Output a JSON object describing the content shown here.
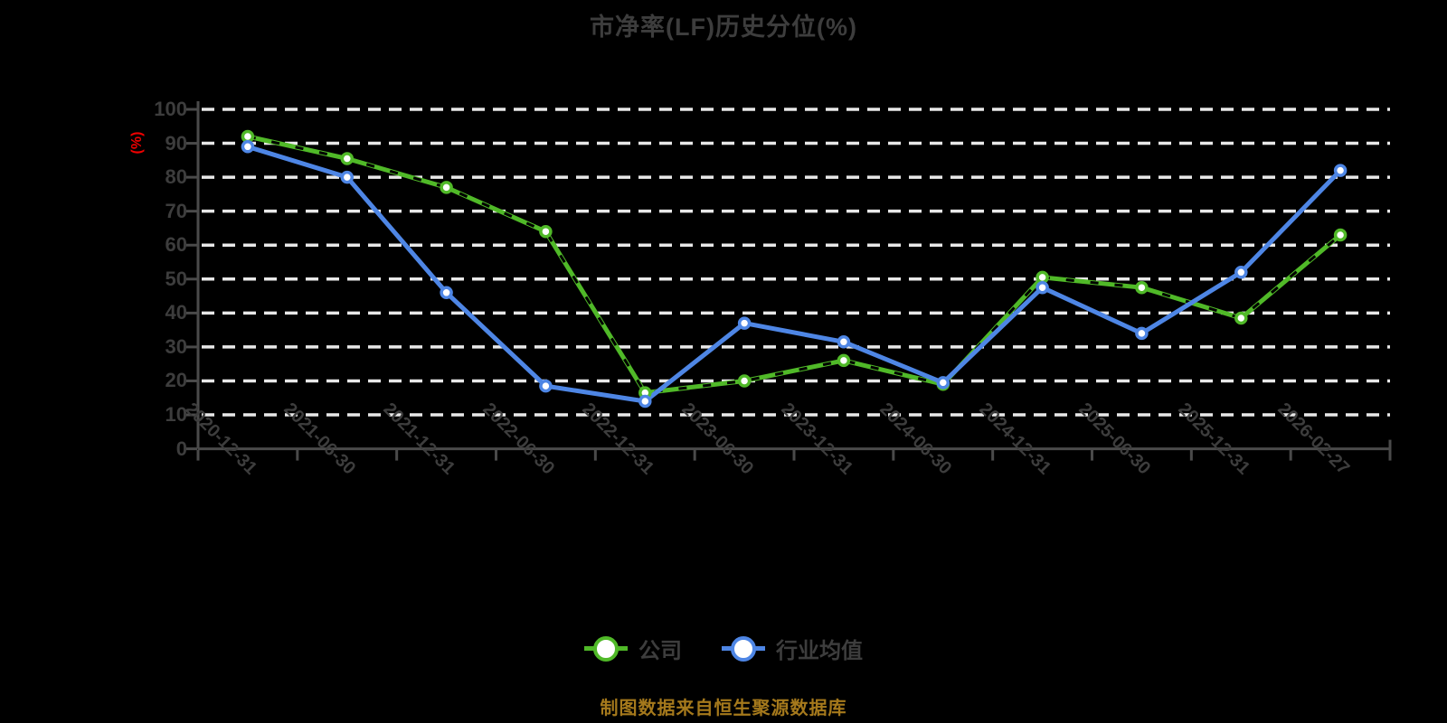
{
  "colors": {
    "background": "#000000",
    "text_gray": "#3d3d3d",
    "axis_line": "#4a4a4a",
    "gridline": "#e8e8e8",
    "unit_red": "#ee0000",
    "source_gold": "#a5791c",
    "marker_fill": "#ffffff",
    "company_green": "#50b928",
    "industry_blue": "#4e86e5"
  },
  "footer": {
    "source_note": "制图数据来自恒生聚源数据库"
  },
  "chart_data": {
    "type": "line",
    "title": "市净率(LF)历史分位(%)",
    "ylabel": "(%)",
    "xlabel": "",
    "ylim": [
      0,
      100
    ],
    "yticks": [
      0,
      10,
      20,
      30,
      40,
      50,
      60,
      70,
      80,
      90,
      100
    ],
    "grid": "horizontal-dashed-white",
    "legend_position": "bottom",
    "categories": [
      "2020-12-31",
      "2021-06-30",
      "2021-12-31",
      "2022-06-30",
      "2022-12-31",
      "2023-06-30",
      "2023-12-31",
      "2024-06-30",
      "2024-12-31",
      "2025-06-30",
      "2025-12-31",
      "2026-02-27"
    ],
    "series": [
      {
        "name": "公司",
        "key": "company",
        "color": "#50b928",
        "style": "solid-with-dark-dash-overlay",
        "values": [
          92,
          85.5,
          77,
          64,
          16.5,
          20,
          26,
          19,
          50.5,
          47.5,
          38.5,
          63
        ]
      },
      {
        "name": "行业均值",
        "key": "industry-average",
        "color": "#4e86e5",
        "style": "solid",
        "values": [
          89,
          80,
          46,
          18.5,
          14,
          37,
          31.5,
          19.5,
          47.5,
          34,
          52,
          82
        ]
      }
    ]
  }
}
